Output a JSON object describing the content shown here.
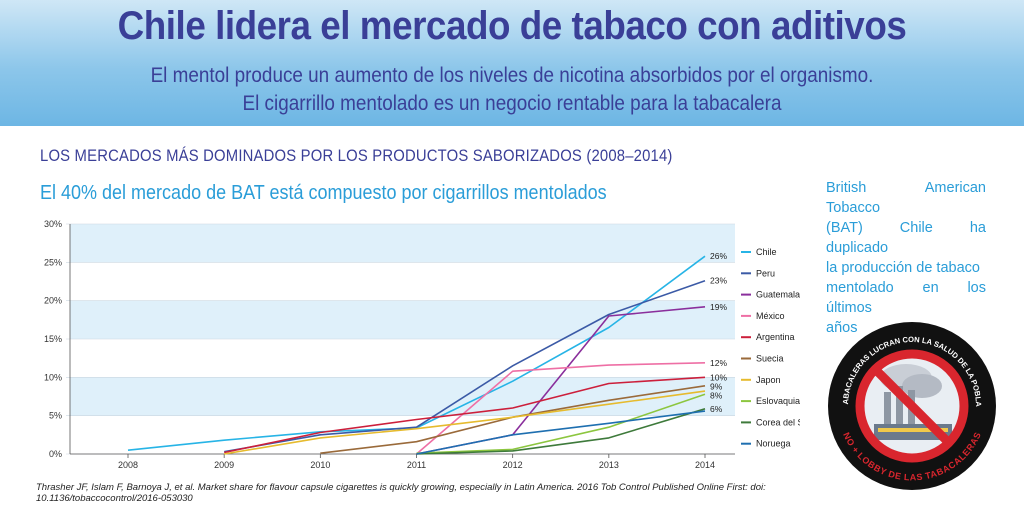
{
  "header": {
    "title": "Chile lidera el mercado de tabaco con aditivos",
    "subtitle_1": "El mentol produce un aumento de los niveles de nicotina absorbidos por el organismo.",
    "subtitle_2": "El cigarrillo mentolado es un negocio rentable para la tabacalera"
  },
  "section_title": "LOS MERCADOS MÁS DOMINADOS POR LOS PRODUCTOS SABORIZADOS (2008–2014)",
  "side_note": {
    "lines": [
      "British American Tobacco",
      "(BAT) Chile ha duplicado",
      "la producción de tabaco",
      "mentolado en los últimos",
      "años"
    ]
  },
  "citation": "Thrasher JF, Islam F, Barnoya J, et al. Market share for flavour capsule cigarettes is quickly growing, especially in Latin America. 2016 Tob Control Published Online First: doi: 10.1136/tobaccocontrol/2016-053030",
  "logo": {
    "ring_text_top": "LAS TABACALERAS LUCRAN CON LA SALUD DE LA POBLACIÓN",
    "ring_text_bottom": "NO + LOBBY DE LAS TABACALERAS"
  },
  "colors": {
    "title": "#3a3f97",
    "accent": "#2a9dd8",
    "band": "#dff0fa"
  },
  "chart_data": {
    "type": "line",
    "title": "El 40% del mercado de BAT está compuesto por cigarrillos mentolados",
    "x": [
      "2008",
      "2009",
      "2010",
      "2011",
      "2012",
      "2013",
      "2014"
    ],
    "ylim": [
      0,
      30
    ],
    "yticks": [
      "0%",
      "5%",
      "10%",
      "15%",
      "20%",
      "25%",
      "30%"
    ],
    "series": [
      {
        "name": "Chile",
        "color": "#27b4e6",
        "values": [
          0.5,
          1.8,
          2.9,
          3.4,
          9.5,
          16.5,
          25.8
        ],
        "end_label": "26%"
      },
      {
        "name": "Peru",
        "color": "#3b5aa6",
        "values": [
          null,
          0.3,
          2.5,
          3.5,
          11.5,
          18.2,
          22.6
        ],
        "end_label": "23%"
      },
      {
        "name": "Guatemala",
        "color": "#8a2f9c",
        "values": [
          null,
          null,
          null,
          0.0,
          2.5,
          18.0,
          19.2
        ],
        "end_label": "19%"
      },
      {
        "name": "México",
        "color": "#ee6fa5",
        "values": [
          null,
          null,
          null,
          0.0,
          10.8,
          11.6,
          11.9
        ],
        "end_label": "12%"
      },
      {
        "name": "Argentina",
        "color": "#cc1f3b",
        "values": [
          null,
          0.2,
          2.8,
          4.5,
          6.0,
          9.2,
          10.0
        ],
        "end_label": "10%"
      },
      {
        "name": "Suecia",
        "color": "#9a6a3a",
        "values": [
          null,
          null,
          0.1,
          1.6,
          4.8,
          7.0,
          8.9
        ],
        "end_label": "9%"
      },
      {
        "name": "Japon",
        "color": "#e6bb2e",
        "values": [
          null,
          0.0,
          2.1,
          3.3,
          4.8,
          6.5,
          8.2
        ],
        "end_label": ""
      },
      {
        "name": "Eslovaquia",
        "color": "#8cc63f",
        "values": [
          null,
          null,
          null,
          0.1,
          0.6,
          3.5,
          7.8
        ],
        "end_label": "8%"
      },
      {
        "name": "Corea del Sur",
        "color": "#3e7a3b",
        "values": [
          null,
          null,
          null,
          0.0,
          0.4,
          2.1,
          5.9
        ],
        "end_label": "6%"
      },
      {
        "name": "Noruega",
        "color": "#1e6fb0",
        "values": [
          null,
          null,
          null,
          0.0,
          2.5,
          4.0,
          5.6
        ],
        "end_label": ""
      }
    ],
    "grid": true,
    "legend_position": "right"
  }
}
